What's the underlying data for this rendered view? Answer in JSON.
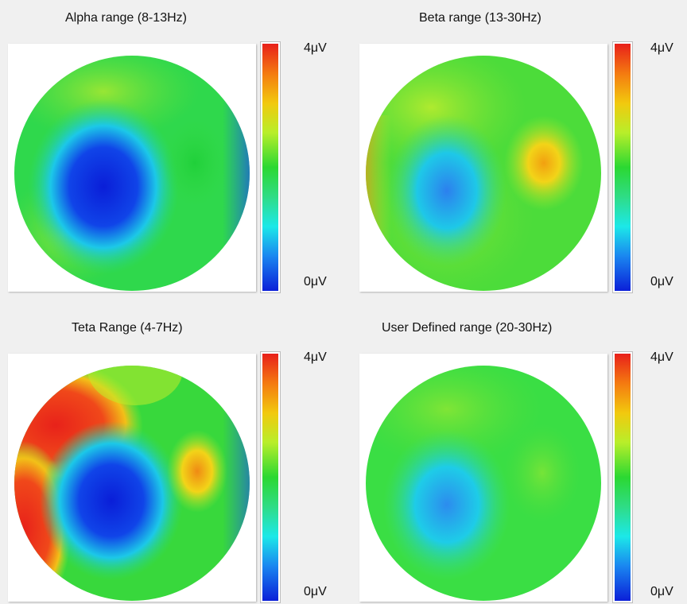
{
  "panels": [
    {
      "title": "Alpha range (8-13Hz)",
      "scale_max": "4μV",
      "scale_min": "0μV",
      "colors": {
        "base": "#2ad84a",
        "low": "#0a20e0",
        "high": "#f0c414"
      }
    },
    {
      "title": "Beta range (13-30Hz)",
      "scale_max": "4μV",
      "scale_min": "0μV",
      "colors": {
        "base": "#52e02c",
        "low": "#2a7ef0",
        "high": "#f2b410"
      }
    },
    {
      "title": "Teta Range (4-7Hz)",
      "scale_max": "4μV",
      "scale_min": "0μV",
      "colors": {
        "base": "#3ad83a",
        "low": "#0a1ee0",
        "high": "#ec2a1a"
      }
    },
    {
      "title": "User Defined range (20-30Hz)",
      "scale_max": "4μV",
      "scale_min": "0μV",
      "colors": {
        "base": "#3ae044",
        "low": "#2a90ec",
        "high": "#b8e82a"
      }
    }
  ]
}
